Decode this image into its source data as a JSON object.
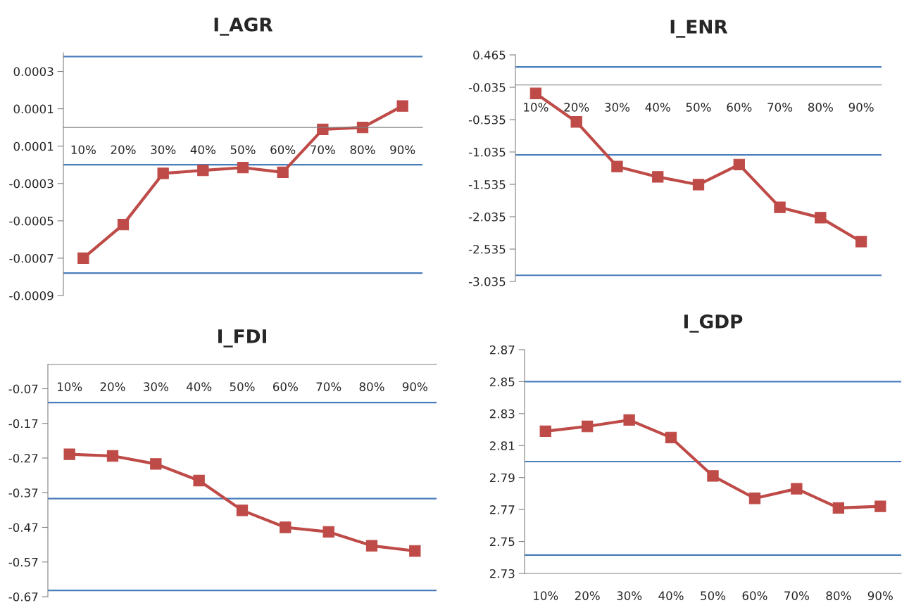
{
  "chart_data": [
    {
      "type": "line",
      "title": "I_AGR",
      "categories": [
        "10%",
        "20%",
        "30%",
        "40%",
        "50%",
        "60%",
        "70%",
        "80%",
        "90%"
      ],
      "marker": "square",
      "line_style": "solid",
      "grid": false,
      "series": [
        {
          "color": "#be4b48",
          "values": [
            -0.0007,
            -0.00052,
            -0.000246,
            -0.00023,
            -0.000215,
            -0.00024,
            -1e-05,
            0,
            0.000115
          ]
        }
      ],
      "ylim": [
        -0.0009,
        0.0004
      ],
      "yticks": [
        0.0003,
        0.0001,
        {
          "value": -0.0001,
          "label": "0.0001"
        },
        -0.0003,
        -0.0005,
        -0.0007,
        -0.0009
      ],
      "ref_lines": [
        {
          "axis": "y",
          "value": 0.00038,
          "color": "#4a7ebb"
        },
        {
          "axis": "y",
          "value": -0.0002,
          "color": "#4a7ebb"
        },
        {
          "axis": "y",
          "value": -0.00078,
          "color": "#4a7ebb"
        }
      ]
    },
    {
      "type": "line",
      "title": "I_ENR",
      "categories": [
        "10%",
        "20%",
        "30%",
        "40%",
        "50%",
        "60%",
        "70%",
        "80%",
        "90%"
      ],
      "marker": "square",
      "line_style": "solid",
      "grid": false,
      "series": [
        {
          "color": "#be4b48",
          "values": [
            -0.13,
            -0.57,
            -1.26,
            -1.42,
            -1.54,
            -1.23,
            -1.89,
            -2.05,
            -2.42
          ]
        }
      ],
      "ylim": [
        -3.035,
        0.465
      ],
      "yticks": [
        0.465,
        -0.035,
        -0.535,
        -1.035,
        -1.535,
        -2.035,
        -2.535,
        -3.035
      ],
      "ref_lines": [
        {
          "axis": "y",
          "value": 0.279,
          "color": "#4a7ebb"
        },
        {
          "axis": "y",
          "value": -1.08,
          "color": "#4a7ebb"
        },
        {
          "axis": "y",
          "value": -2.94,
          "color": "#4a7ebb"
        }
      ]
    },
    {
      "type": "line",
      "title": "I_FDI",
      "categories": [
        "10%",
        "20%",
        "30%",
        "40%",
        "50%",
        "60%",
        "70%",
        "80%",
        "90%"
      ],
      "marker": "square",
      "line_style": "solid",
      "grid": false,
      "series": [
        {
          "color": "#be4b48",
          "values": [
            -0.259,
            -0.264,
            -0.287,
            -0.335,
            -0.421,
            -0.47,
            -0.483,
            -0.523,
            -0.538
          ]
        }
      ],
      "ylim": [
        -0.67,
        0
      ],
      "yticks": [
        -0.07,
        -0.17,
        -0.27,
        -0.37,
        -0.47,
        -0.57,
        -0.67
      ],
      "ref_lines": [
        {
          "axis": "y",
          "value": -0.11,
          "color": "#4a7ebb"
        },
        {
          "axis": "y",
          "value": -0.387,
          "color": "#4a7ebb"
        },
        {
          "axis": "y",
          "value": -0.652,
          "color": "#4a7ebb"
        }
      ]
    },
    {
      "type": "line",
      "title": "I_GDP",
      "categories": [
        "10%",
        "20%",
        "30%",
        "40%",
        "50%",
        "60%",
        "70%",
        "80%",
        "90%"
      ],
      "marker": "square",
      "line_style": "solid",
      "grid": false,
      "series": [
        {
          "color": "#be4b48",
          "values": [
            2.819,
            2.822,
            2.826,
            2.815,
            2.791,
            2.777,
            2.783,
            2.771,
            2.772
          ]
        }
      ],
      "ylim": [
        2.73,
        2.87
      ],
      "yticks": [
        2.87,
        2.85,
        2.83,
        2.81,
        2.79,
        2.77,
        2.75,
        2.73
      ],
      "ref_lines": [
        {
          "axis": "y",
          "value": 2.85,
          "color": "#4a7ebb"
        },
        {
          "axis": "y",
          "value": 2.8,
          "color": "#4a7ebb"
        },
        {
          "axis": "y",
          "value": 2.7415,
          "color": "#4a7ebb"
        }
      ]
    }
  ]
}
